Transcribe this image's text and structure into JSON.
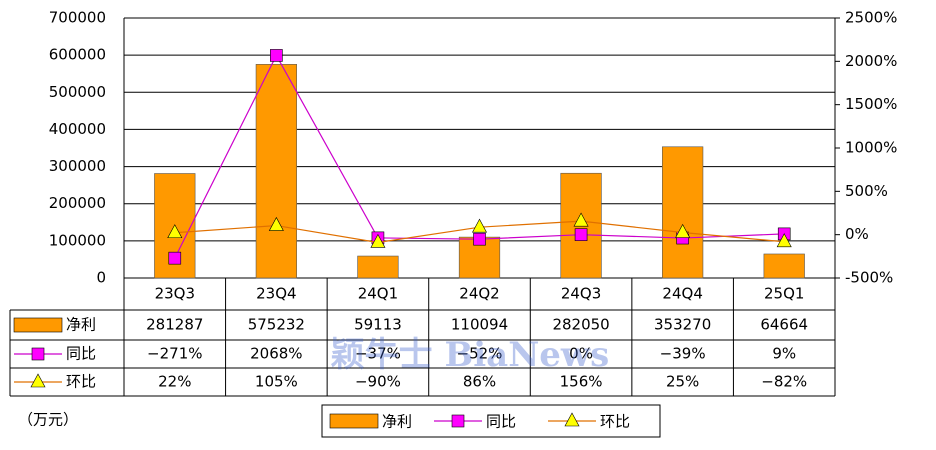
{
  "chart_data": {
    "type": "bar",
    "categories": [
      "23Q3",
      "23Q4",
      "24Q1",
      "24Q2",
      "24Q3",
      "24Q4",
      "25Q1"
    ],
    "series": [
      {
        "name": "净利",
        "type": "bar",
        "color": "#FF9900",
        "values": [
          281287,
          575232,
          59113,
          110094,
          282050,
          353270,
          64664
        ]
      },
      {
        "name": "同比",
        "type": "line",
        "axis": "y2",
        "color": "#FF00FF",
        "line_color": "#CC00CC",
        "marker": "square",
        "values": [
          -271,
          2068,
          -37,
          -52,
          0,
          -39,
          9
        ],
        "value_labels": [
          "−271%",
          "2068%",
          "−37%",
          "−52%",
          "0%",
          "−39%",
          "9%"
        ]
      },
      {
        "name": "环比",
        "type": "line",
        "axis": "y2",
        "color": "#FFFF00",
        "line_color": "#E07000",
        "marker": "triangle",
        "values": [
          22,
          105,
          -90,
          86,
          156,
          25,
          -82
        ],
        "value_labels": [
          "22%",
          "105%",
          "−90%",
          "86%",
          "156%",
          "25%",
          "−82%"
        ]
      }
    ],
    "ylim": [
      0,
      700000
    ],
    "yticks": [
      0,
      100000,
      200000,
      300000,
      400000,
      500000,
      600000,
      700000
    ],
    "y2lim": [
      -500,
      2500
    ],
    "y2ticks": [
      {
        "value": -500,
        "label": "-500%"
      },
      {
        "value": 0,
        "label": "0%"
      },
      {
        "value": 500,
        "label": "500%"
      },
      {
        "value": 1000,
        "label": "1000%"
      },
      {
        "value": 1500,
        "label": "1500%"
      },
      {
        "value": 2000,
        "label": "2000%"
      },
      {
        "value": 2500,
        "label": "2500%"
      }
    ],
    "grid": true,
    "unit_label": "（万元）",
    "watermark": "颖牛士 BiaNews"
  }
}
